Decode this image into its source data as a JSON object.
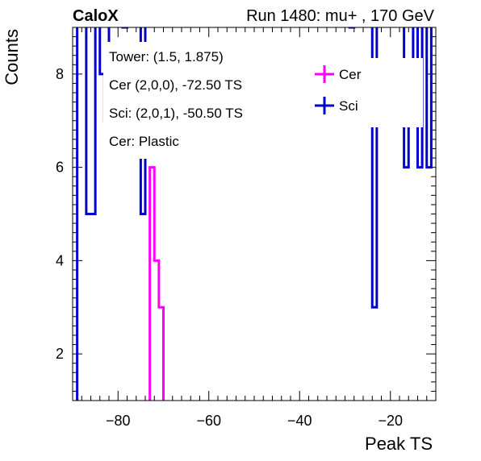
{
  "header": {
    "experiment": "CaloX",
    "run_info": "Run 1480: mu+ , 170 GeV"
  },
  "info_box": {
    "tower": "Tower: (1.5, 1.875)",
    "cer_channel": "Cer (2,0,0), -72.50 TS",
    "sci_channel": "Sci: (2,0,1), -50.50 TS",
    "cer_material": "Cer: Plastic"
  },
  "colors": {
    "cer": "#ff00ff",
    "sci": "#0000cc"
  },
  "chart_data": {
    "type": "line",
    "title": "",
    "xlabel": "Peak TS",
    "ylabel": "Counts",
    "xlim": [
      -90,
      -10
    ],
    "ylim": [
      1,
      9
    ],
    "x_ticks": [
      -80,
      -60,
      -40,
      -20
    ],
    "x_tick_labels": [
      "−80",
      "−60",
      "−40",
      "−20"
    ],
    "y_ticks": [
      2,
      4,
      6,
      8
    ],
    "y_tick_labels": [
      "2",
      "4",
      "6",
      "8"
    ],
    "legend": {
      "placement": "top-right",
      "entries": [
        "Cer",
        "Sci"
      ]
    },
    "bin_width": 1,
    "series": [
      {
        "name": "Cer",
        "color": "#ff00ff",
        "bin_edges": [
          -90,
          -73,
          -72,
          -71,
          -70,
          -10
        ],
        "counts": [
          0,
          6,
          4,
          3,
          0
        ]
      },
      {
        "name": "Sci",
        "color": "#0000cc",
        "bin_edges": [
          -90,
          -89,
          -88,
          -87,
          -86,
          -85,
          -84,
          -83,
          -82,
          -81,
          -80,
          -79,
          -78,
          -77,
          -76,
          -75,
          -74,
          -73,
          -72,
          -71,
          -70,
          -69,
          -68,
          -67,
          -66,
          -65,
          -64,
          -63,
          -62,
          -61,
          -60,
          -59,
          -58,
          -57,
          -56,
          -55,
          -54,
          -53,
          -52,
          -51,
          -50,
          -49,
          -48,
          -47,
          -46,
          -45,
          -44,
          -43,
          -42,
          -41,
          -40,
          -39,
          -38,
          -37,
          -36,
          -35,
          -34,
          -33,
          -32,
          -31,
          -30,
          -29,
          -28,
          -27,
          -26,
          -25,
          -24,
          -23,
          -22,
          -21,
          -20,
          -19,
          -18,
          -17,
          -16,
          -15,
          -14,
          -13,
          -12,
          -11,
          -10
        ],
        "counts": [
          0,
          10,
          10,
          5,
          5,
          10,
          8,
          7,
          10,
          10,
          10,
          9,
          10,
          10,
          10,
          5,
          10,
          10,
          10,
          10,
          10,
          10,
          10,
          10,
          10,
          10,
          10,
          10,
          10,
          10,
          10,
          10,
          10,
          10,
          10,
          10,
          10,
          10,
          10,
          10,
          10,
          10,
          10,
          10,
          10,
          10,
          10,
          10,
          10,
          10,
          10,
          10,
          10,
          10,
          10,
          10,
          10,
          10,
          10,
          10,
          10,
          9,
          10,
          10,
          10,
          10,
          3,
          10,
          10,
          10,
          10,
          10,
          10,
          6,
          7,
          10,
          6,
          10,
          6,
          10
        ]
      }
    ]
  }
}
